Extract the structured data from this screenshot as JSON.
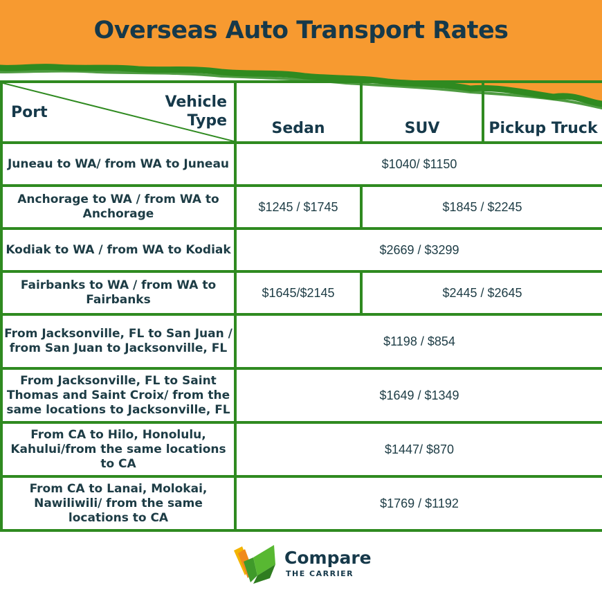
{
  "title": "Overseas Auto Transport Rates",
  "colors": {
    "orange": "#f79a30",
    "green": "#2f8a20",
    "navy": "#16394a"
  },
  "header": {
    "port_label": "Port",
    "vehicle_type_line1": "Vehicle",
    "vehicle_type_line2": "Type",
    "columns": [
      "Sedan",
      "SUV",
      "Pickup Truck"
    ]
  },
  "rows": [
    {
      "port": "Juneau to WA/ from WA to Juneau",
      "all": "$1040/ $1150"
    },
    {
      "port": "Anchorage to WA / from WA to Anchorage",
      "sedan": "$1245 / $1745",
      "suv_pickup": "$1845 / $2245"
    },
    {
      "port": "Kodiak to WA / from WA to Kodiak",
      "all": "$2669 / $3299"
    },
    {
      "port": "Fairbanks to WA / from WA to Fairbanks",
      "sedan": "$1645/$2145",
      "suv_pickup": "$2445 / $2645"
    },
    {
      "port": "From Jacksonville, FL to San Juan / from San Juan to Jacksonville, FL",
      "all": "$1198 / $854"
    },
    {
      "port": "From Jacksonville, FL to Saint Thomas and Saint Croix/ from the same locations to Jacksonville, FL",
      "all": "$1649 / $1349"
    },
    {
      "port": "From CA to Hilo, Honolulu, Kahului/from the same locations to CA",
      "all": "$1447/ $870"
    },
    {
      "port": "From CA to Lanai, Molokai, Nawiliwili/ from the same locations to CA",
      "all": "$1769 / $1192"
    }
  ],
  "logo": {
    "name": "Compare",
    "tagline": "THE CARRIER",
    "icon": "folded-check-icon"
  }
}
